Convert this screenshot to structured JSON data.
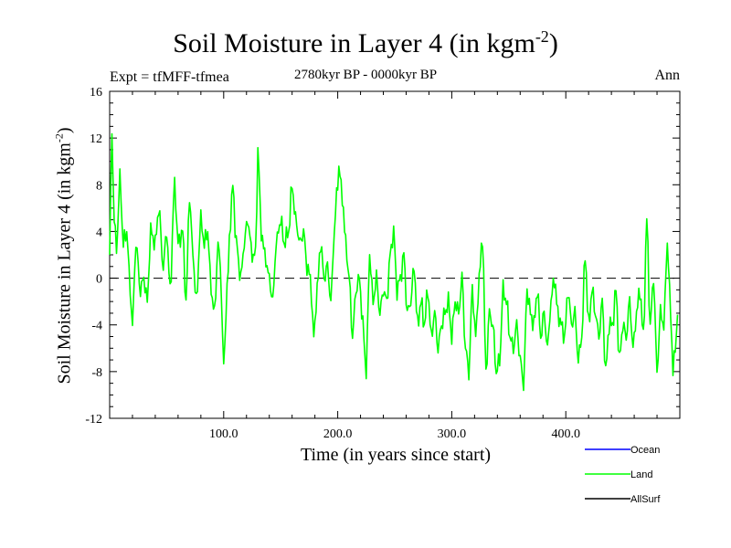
{
  "chart_data": {
    "type": "line",
    "title": "Soil Moisture in Layer 4 (in kgm",
    "title_sup": "-2",
    "title_end": ")",
    "subtitle": "2780kyr BP - 0000kyr BP",
    "expt_label": "Expt = tfMFF-tfmea",
    "season": "Ann",
    "xlabel": "Time (in years since start)",
    "ylabel": "Soil Moisture in Layer 4 (in kgm",
    "ylabel_sup": "-2",
    "ylabel_end": ")",
    "xlim": [
      0,
      500
    ],
    "ylim": [
      -12,
      16
    ],
    "xticks": [
      100,
      200,
      300,
      400
    ],
    "xtick_labels": [
      "100.0",
      "200.0",
      "300.0",
      "400.0"
    ],
    "yticks": [
      16,
      12,
      8,
      4,
      0,
      -4,
      -8,
      -12
    ],
    "ytick_labels": [
      "16",
      "12",
      "8",
      "4",
      "0",
      "-4",
      "-8",
      "-12"
    ],
    "zero_line": true,
    "legend": [
      {
        "name": "Ocean",
        "color": "#0000ff"
      },
      {
        "name": "Land",
        "color": "#00ff00"
      },
      {
        "name": "AllSurf",
        "color": "#000000"
      }
    ],
    "series": [
      {
        "name": "Land",
        "color": "#00ff00",
        "anchors": [
          [
            0,
            2
          ],
          [
            2,
            12.5
          ],
          [
            4,
            5
          ],
          [
            6,
            2.5
          ],
          [
            9,
            8.5
          ],
          [
            12,
            3
          ],
          [
            15,
            4
          ],
          [
            18,
            -1
          ],
          [
            20,
            -4
          ],
          [
            23,
            3
          ],
          [
            27,
            -1
          ],
          [
            30,
            0
          ],
          [
            33,
            -2
          ],
          [
            36,
            4
          ],
          [
            40,
            3
          ],
          [
            43,
            6
          ],
          [
            47,
            1
          ],
          [
            50,
            4
          ],
          [
            53,
            -1
          ],
          [
            57,
            8
          ],
          [
            60,
            3
          ],
          [
            64,
            4
          ],
          [
            67,
            -2
          ],
          [
            70,
            7
          ],
          [
            73,
            2
          ],
          [
            76,
            -2
          ],
          [
            80,
            5
          ],
          [
            83,
            3
          ],
          [
            86,
            4
          ],
          [
            89,
            -1
          ],
          [
            92,
            -3
          ],
          [
            95,
            3
          ],
          [
            97,
            1
          ],
          [
            100,
            -7.5
          ],
          [
            103,
            -1
          ],
          [
            106,
            5
          ],
          [
            108,
            8
          ],
          [
            111,
            3
          ],
          [
            115,
            0
          ],
          [
            118,
            3
          ],
          [
            121,
            5
          ],
          [
            125,
            2
          ],
          [
            128,
            2
          ],
          [
            130,
            11
          ],
          [
            133,
            4
          ],
          [
            136,
            2
          ],
          [
            140,
            0
          ],
          [
            143,
            -2
          ],
          [
            146,
            3
          ],
          [
            150,
            5
          ],
          [
            153,
            3
          ],
          [
            157,
            4
          ],
          [
            160,
            8
          ],
          [
            163,
            5
          ],
          [
            167,
            3
          ],
          [
            170,
            4
          ],
          [
            173,
            1
          ],
          [
            176,
            0
          ],
          [
            179,
            -5
          ],
          [
            182,
            -1
          ],
          [
            185,
            3
          ],
          [
            188,
            0
          ],
          [
            191,
            1
          ],
          [
            194,
            -2
          ],
          [
            197,
            4
          ],
          [
            199,
            7
          ],
          [
            201,
            9.5
          ],
          [
            204,
            7
          ],
          [
            207,
            3
          ],
          [
            210,
            0
          ],
          [
            213,
            -5
          ],
          [
            216,
            -1
          ],
          [
            219,
            0
          ],
          [
            222,
            -4
          ],
          [
            225,
            -8
          ],
          [
            228,
            2
          ],
          [
            231,
            -2
          ],
          [
            234,
            0
          ],
          [
            237,
            -3
          ],
          [
            240,
            -1
          ],
          [
            243,
            -2
          ],
          [
            246,
            2
          ],
          [
            249,
            4
          ],
          [
            252,
            -1
          ],
          [
            255,
            0
          ],
          [
            258,
            2
          ],
          [
            261,
            -3
          ],
          [
            264,
            -2
          ],
          [
            267,
            1
          ],
          [
            270,
            -4
          ],
          [
            273,
            -2
          ],
          [
            276,
            -4
          ],
          [
            279,
            -1
          ],
          [
            282,
            -5
          ],
          [
            285,
            -3
          ],
          [
            288,
            -6
          ],
          [
            291,
            -4
          ],
          [
            294,
            -3
          ],
          [
            297,
            -2
          ],
          [
            300,
            -5
          ],
          [
            303,
            -2
          ],
          [
            306,
            -3
          ],
          [
            309,
            0
          ],
          [
            312,
            -6
          ],
          [
            315,
            -8
          ],
          [
            318,
            -1
          ],
          [
            321,
            -5
          ],
          [
            324,
            0
          ],
          [
            327,
            3.5
          ],
          [
            330,
            -8
          ],
          [
            333,
            -3
          ],
          [
            336,
            -4
          ],
          [
            339,
            -8
          ],
          [
            342,
            -7
          ],
          [
            345,
            -1
          ],
          [
            348,
            -2
          ],
          [
            351,
            -5
          ],
          [
            354,
            -6
          ],
          [
            357,
            -4
          ],
          [
            360,
            -7
          ],
          [
            363,
            -9
          ],
          [
            366,
            -1
          ],
          [
            369,
            -3
          ],
          [
            372,
            -4
          ],
          [
            375,
            -1
          ],
          [
            378,
            -5
          ],
          [
            381,
            -3
          ],
          [
            384,
            -6
          ],
          [
            387,
            -2
          ],
          [
            390,
            0
          ],
          [
            393,
            -3
          ],
          [
            396,
            -4
          ],
          [
            399,
            -5
          ],
          [
            402,
            -1
          ],
          [
            405,
            -4
          ],
          [
            408,
            -3
          ],
          [
            411,
            -7
          ],
          [
            414,
            -5
          ],
          [
            417,
            2
          ],
          [
            420,
            -4
          ],
          [
            423,
            -1
          ],
          [
            426,
            -3
          ],
          [
            429,
            -5
          ],
          [
            432,
            -2
          ],
          [
            435,
            -8
          ],
          [
            438,
            -4
          ],
          [
            441,
            -4
          ],
          [
            444,
            -1
          ],
          [
            447,
            -7
          ],
          [
            450,
            -4
          ],
          [
            453,
            -5
          ],
          [
            456,
            -2
          ],
          [
            459,
            -6
          ],
          [
            462,
            -3
          ],
          [
            465,
            -1
          ],
          [
            468,
            -5
          ],
          [
            471,
            5
          ],
          [
            474,
            -4
          ],
          [
            477,
            0
          ],
          [
            480,
            -8
          ],
          [
            483,
            -3
          ],
          [
            486,
            -4
          ],
          [
            489,
            3
          ],
          [
            492,
            -3
          ],
          [
            494,
            -8
          ],
          [
            496,
            -6
          ],
          [
            498,
            -3
          ]
        ]
      }
    ]
  }
}
